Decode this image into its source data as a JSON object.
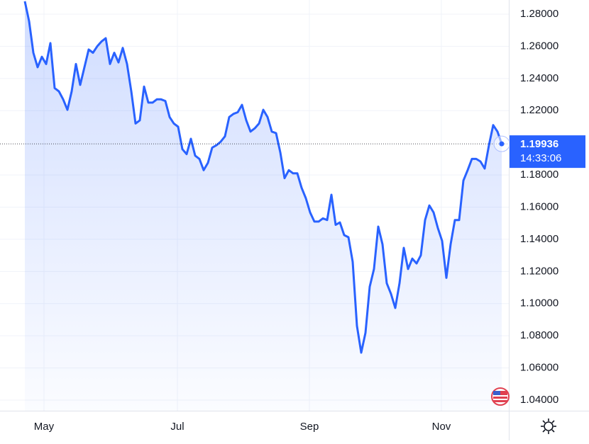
{
  "chart_data": {
    "type": "line",
    "values": [
      1.288,
      1.2756,
      1.256,
      1.247,
      1.2535,
      1.249,
      1.262,
      1.234,
      1.232,
      1.227,
      1.2205,
      1.232,
      1.249,
      1.236,
      1.247,
      1.258,
      1.256,
      1.26,
      1.263,
      1.265,
      1.249,
      1.256,
      1.25,
      1.259,
      1.249,
      1.232,
      1.212,
      1.214,
      1.235,
      1.225,
      1.225,
      1.227,
      1.227,
      1.226,
      1.216,
      1.212,
      1.21,
      1.196,
      1.193,
      1.2025,
      1.192,
      1.19,
      1.183,
      1.1875,
      1.197,
      1.1985,
      1.2007,
      1.204,
      1.216,
      1.218,
      1.219,
      1.2236,
      1.214,
      1.207,
      1.209,
      1.212,
      1.2205,
      1.216,
      1.207,
      1.206,
      1.194,
      1.178,
      1.183,
      1.181,
      1.181,
      1.172,
      1.1655,
      1.1567,
      1.151,
      1.151,
      1.153,
      1.152,
      1.1677,
      1.149,
      1.1505,
      1.1426,
      1.1413,
      1.126,
      1.0862,
      1.0695,
      1.0818,
      1.1105,
      1.1215,
      1.1479,
      1.1369,
      1.1127,
      1.106,
      1.0973,
      1.1127,
      1.1347,
      1.1215,
      1.128,
      1.125,
      1.13,
      1.152,
      1.161,
      1.1567,
      1.147,
      1.139,
      1.116,
      1.1369,
      1.152,
      1.152,
      1.1765,
      1.183,
      1.19,
      1.19,
      1.1884,
      1.184,
      1.1985,
      1.211,
      1.207,
      1.19936
    ],
    "color": "#2962ff",
    "last_time": "14:33:06",
    "xlim": [
      -5.83,
      113.67
    ],
    "xticks": [
      {
        "value": 4.5,
        "label": "May"
      },
      {
        "value": 35.83,
        "label": "Jul"
      },
      {
        "value": 66.83,
        "label": "Sep"
      },
      {
        "value": 97.83,
        "label": "Nov"
      }
    ],
    "ylim": [
      1.0334,
      1.2888
    ],
    "yticks": [
      {
        "value": 1.04,
        "label": "1.04000"
      },
      {
        "value": 1.06,
        "label": "1.06000"
      },
      {
        "value": 1.08,
        "label": "1.08000"
      },
      {
        "value": 1.1,
        "label": "1.10000"
      },
      {
        "value": 1.12,
        "label": "1.12000"
      },
      {
        "value": 1.14,
        "label": "1.14000"
      },
      {
        "value": 1.16,
        "label": "1.16000"
      },
      {
        "value": 1.18,
        "label": "1.18000"
      },
      {
        "value": 1.22,
        "label": "1.22000"
      },
      {
        "value": 1.24,
        "label": "1.24000"
      },
      {
        "value": 1.26,
        "label": "1.26000"
      },
      {
        "value": 1.28,
        "label": "1.28000"
      }
    ],
    "grid": true
  }
}
